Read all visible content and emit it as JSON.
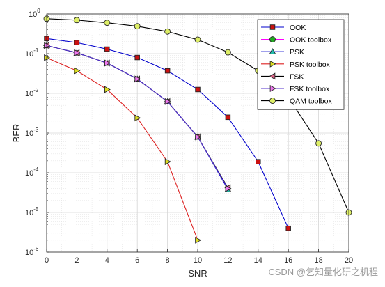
{
  "chart_data": {
    "type": "line",
    "title": "",
    "xlabel": "SNR",
    "ylabel": "BER",
    "xlim": [
      0,
      20
    ],
    "ylim": [
      1e-06,
      1
    ],
    "yscale": "log",
    "grid": true,
    "minor_grid": true,
    "legend_position": "top-right",
    "x_ticks": [
      "0",
      "2",
      "4",
      "6",
      "8",
      "10",
      "12",
      "14",
      "16",
      "18",
      "20"
    ],
    "y_ticks": [
      {
        "base": "10",
        "exp": "0",
        "value": 1
      },
      {
        "base": "10",
        "exp": "-1",
        "value": 0.1
      },
      {
        "base": "10",
        "exp": "-2",
        "value": 0.01
      },
      {
        "base": "10",
        "exp": "-3",
        "value": 0.001
      },
      {
        "base": "10",
        "exp": "-4",
        "value": 0.0001
      },
      {
        "base": "10",
        "exp": "-5",
        "value": 1e-05
      },
      {
        "base": "10",
        "exp": "-6",
        "value": 1e-06
      }
    ],
    "series": [
      {
        "name": "OOK",
        "color": "#0000cc",
        "marker": "square",
        "marker_fill": "#cc1111",
        "x": [
          0,
          2,
          4,
          6,
          8,
          10,
          12,
          14,
          16
        ],
        "y": [
          0.24,
          0.19,
          0.13,
          0.08,
          0.037,
          0.0125,
          0.0025,
          0.00019,
          4e-06
        ]
      },
      {
        "name": "OOK toolbox",
        "color": "#ff00ff",
        "marker": "circle",
        "marker_fill": "#22aa22",
        "x": [],
        "y": []
      },
      {
        "name": "PSK",
        "color": "#0000cc",
        "marker": "triangle-up",
        "marker_fill": "#22bbaa",
        "x": [
          0,
          2,
          4,
          6,
          8,
          10,
          12
        ],
        "y": [
          0.16,
          0.105,
          0.058,
          0.023,
          0.0062,
          0.0008,
          3.8e-05
        ]
      },
      {
        "name": "PSK toolbox",
        "color": "#dd2222",
        "marker": "triangle-right",
        "marker_fill": "#dddd22",
        "x": [
          0,
          2,
          4,
          6,
          8,
          10
        ],
        "y": [
          0.079,
          0.037,
          0.0125,
          0.0024,
          0.00019,
          2e-06
        ]
      },
      {
        "name": "FSK",
        "color": "#000000",
        "marker": "triangle-left",
        "marker_fill": "#dd6688",
        "x": [
          0,
          2,
          4,
          6,
          8,
          10,
          12
        ],
        "y": [
          0.16,
          0.105,
          0.058,
          0.023,
          0.0062,
          0.0008,
          4.2e-05
        ]
      },
      {
        "name": "FSK toolbox",
        "color": "#5533cc",
        "marker": "triangle-right",
        "marker_fill": "#ee77ee",
        "x": [
          0,
          2,
          4,
          6,
          8,
          10,
          12
        ],
        "y": [
          0.16,
          0.105,
          0.058,
          0.023,
          0.0062,
          0.0008,
          4e-05
        ]
      },
      {
        "name": "QAM toolbox",
        "color": "#000000",
        "marker": "circle",
        "marker_fill": "#ddee66",
        "x": [
          0,
          2,
          4,
          6,
          8,
          10,
          12,
          14,
          16,
          18,
          20
        ],
        "y": [
          0.76,
          0.7,
          0.6,
          0.49,
          0.36,
          0.225,
          0.108,
          0.037,
          0.0079,
          0.00055,
          1e-05
        ]
      }
    ]
  },
  "watermark": "CSDN @乞知量化研之机程"
}
